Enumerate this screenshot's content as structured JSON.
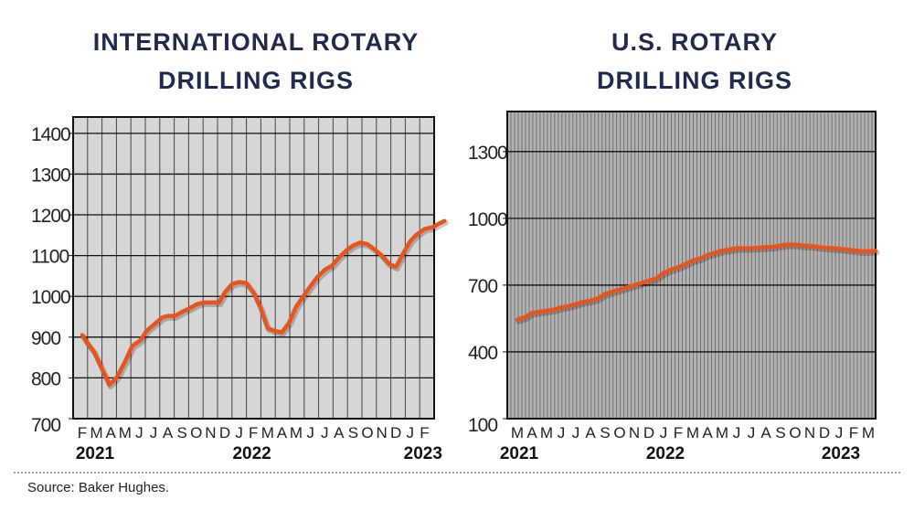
{
  "source": "Source: Baker Hughes.",
  "colors": {
    "line": "#e8541e",
    "panel_intl": "#d6d6d6",
    "panel_us": "#b3b3b3",
    "title": "#1f2a4e"
  },
  "chart_data": [
    {
      "type": "line",
      "title_lines": [
        "INTERNATIONAL ROTARY",
        "DRILLING RIGS"
      ],
      "ylim": [
        700,
        1440
      ],
      "y_ticks": [
        700,
        800,
        900,
        1000,
        1100,
        1200,
        1300,
        1400
      ],
      "x_ticks": [
        "F",
        "M",
        "A",
        "M",
        "J",
        "J",
        "A",
        "S",
        "O",
        "N",
        "D",
        "J",
        "F",
        "M",
        "A",
        "M",
        "J",
        "J",
        "A",
        "S",
        "O",
        "N",
        "D",
        "J",
        "F"
      ],
      "year_labels": [
        {
          "label": "2021",
          "at_tick": 0
        },
        {
          "label": "2022",
          "at_tick": 11
        },
        {
          "label": "2023",
          "at_tick": 23
        }
      ],
      "grid": true,
      "series": [
        {
          "x": [
            0,
            0.3,
            0.8,
            1.3,
            1.9,
            2.4,
            3,
            3.5,
            4.1,
            4.5,
            5,
            5.6,
            6,
            6.5,
            7,
            7.6,
            8,
            8.5,
            9,
            9.6,
            10,
            10.5,
            11,
            11.5,
            12,
            12.5,
            13,
            13.5,
            14,
            14.5,
            15,
            15.6,
            16,
            16.5,
            17,
            17.5,
            18,
            18.5,
            19,
            19.5,
            20,
            20.5,
            21,
            21.5,
            22,
            22.5,
            23,
            23.4,
            24,
            24.6,
            25,
            25.4
          ],
          "values": [
            905,
            888,
            865,
            828,
            783,
            800,
            840,
            878,
            893,
            915,
            930,
            948,
            952,
            952,
            962,
            972,
            980,
            985,
            985,
            985,
            1010,
            1030,
            1035,
            1033,
            1010,
            972,
            922,
            915,
            912,
            935,
            975,
            1005,
            1025,
            1048,
            1065,
            1075,
            1095,
            1112,
            1125,
            1132,
            1128,
            1115,
            1100,
            1080,
            1072,
            1105,
            1135,
            1150,
            1165,
            1170,
            1178,
            1185
          ]
        }
      ]
    },
    {
      "type": "line",
      "title_lines": [
        "U.S. ROTARY",
        "DRILLING RIGS"
      ],
      "ylim": [
        100,
        1480
      ],
      "y_ticks": [
        100,
        400,
        700,
        1000,
        1300
      ],
      "x_ticks": [
        "M",
        "A",
        "M",
        "J",
        "J",
        "A",
        "S",
        "O",
        "N",
        "D",
        "J",
        "F",
        "M",
        "A",
        "M",
        "J",
        "J",
        "A",
        "S",
        "O",
        "N",
        "D",
        "J",
        "F",
        "M"
      ],
      "year_labels": [
        {
          "label": "2021",
          "at_tick": 0
        },
        {
          "label": "2022",
          "at_tick": 10
        },
        {
          "label": "2023",
          "at_tick": 22
        }
      ],
      "grid": true,
      "series": [
        {
          "x": [
            0,
            0.5,
            1,
            1.5,
            2,
            2.5,
            3,
            3.5,
            4,
            4.5,
            5,
            5.5,
            6,
            6.5,
            7,
            7.5,
            8,
            8.5,
            9,
            9.5,
            10,
            10.5,
            11,
            11.5,
            12,
            12.5,
            13,
            13.5,
            14,
            14.5,
            15,
            15.5,
            16,
            16.5,
            17,
            17.5,
            18,
            18.5,
            19,
            19.5,
            20,
            20.5,
            21,
            21.5,
            22,
            22.5,
            23,
            23.5,
            24,
            24.5
          ],
          "values": [
            545,
            555,
            575,
            580,
            585,
            590,
            600,
            605,
            615,
            625,
            630,
            640,
            660,
            670,
            680,
            690,
            700,
            710,
            720,
            730,
            755,
            770,
            780,
            795,
            810,
            820,
            835,
            845,
            855,
            860,
            866,
            866,
            866,
            868,
            870,
            872,
            878,
            882,
            882,
            878,
            876,
            872,
            868,
            866,
            864,
            860,
            856,
            852,
            852,
            854
          ]
        }
      ]
    }
  ]
}
